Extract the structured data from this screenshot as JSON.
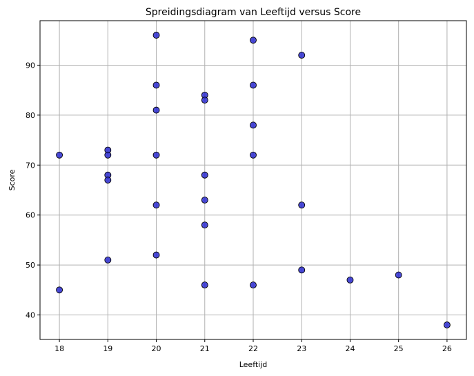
{
  "chart_data": {
    "type": "scatter",
    "title": "Spreidingsdiagram van Leeftijd versus Score",
    "xlabel": "Leeftijd",
    "ylabel": "Score",
    "xlim": [
      17.6,
      26.4
    ],
    "ylim": [
      35.1,
      98.9
    ],
    "xticks": [
      18,
      19,
      20,
      21,
      22,
      23,
      24,
      25,
      26
    ],
    "yticks": [
      40,
      50,
      60,
      70,
      80,
      90
    ],
    "grid": true,
    "marker_color": "#2a2ad0",
    "marker_edge_color": "#000000",
    "points": [
      {
        "x": 18,
        "y": 72
      },
      {
        "x": 18,
        "y": 45
      },
      {
        "x": 19,
        "y": 73
      },
      {
        "x": 19,
        "y": 72
      },
      {
        "x": 19,
        "y": 68
      },
      {
        "x": 19,
        "y": 67
      },
      {
        "x": 19,
        "y": 51
      },
      {
        "x": 20,
        "y": 96
      },
      {
        "x": 20,
        "y": 86
      },
      {
        "x": 20,
        "y": 81
      },
      {
        "x": 20,
        "y": 72
      },
      {
        "x": 20,
        "y": 62
      },
      {
        "x": 20,
        "y": 52
      },
      {
        "x": 21,
        "y": 84
      },
      {
        "x": 21,
        "y": 83
      },
      {
        "x": 21,
        "y": 68
      },
      {
        "x": 21,
        "y": 63
      },
      {
        "x": 21,
        "y": 58
      },
      {
        "x": 21,
        "y": 46
      },
      {
        "x": 22,
        "y": 95
      },
      {
        "x": 22,
        "y": 86
      },
      {
        "x": 22,
        "y": 78
      },
      {
        "x": 22,
        "y": 72
      },
      {
        "x": 22,
        "y": 46
      },
      {
        "x": 23,
        "y": 92
      },
      {
        "x": 23,
        "y": 62
      },
      {
        "x": 23,
        "y": 49
      },
      {
        "x": 24,
        "y": 47
      },
      {
        "x": 25,
        "y": 48
      },
      {
        "x": 26,
        "y": 38
      }
    ]
  }
}
